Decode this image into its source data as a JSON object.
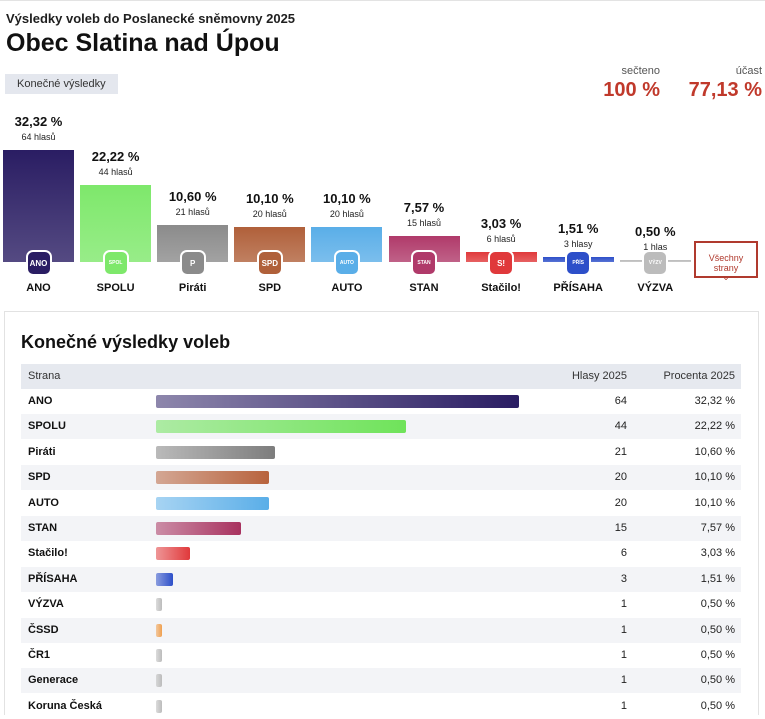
{
  "header": {
    "subtitle": "Výsledky voleb do Poslanecké sněmovny 2025",
    "title": "Obec Slatina nad Úpou",
    "badge": "Konečné výsledky"
  },
  "stats": {
    "counted_label": "sečteno",
    "counted_value": "100 %",
    "turnout_label": "účast",
    "turnout_value": "77,13 %"
  },
  "all_parties_button": {
    "label": "Všechny strany",
    "icon": "chevron-down-icon"
  },
  "chart_data": {
    "type": "bar",
    "title": "",
    "categories": [
      "ANO",
      "SPOLU",
      "Piráti",
      "SPD",
      "AUTO",
      "STAN",
      "Stačilo!",
      "PŘÍSAHA",
      "VÝZVA"
    ],
    "values": [
      32.32,
      22.22,
      10.6,
      10.1,
      10.1,
      7.57,
      3.03,
      1.51,
      0.5
    ],
    "value_labels": [
      "32,32 %",
      "22,22 %",
      "10,60 %",
      "10,10 %",
      "10,10 %",
      "7,57 %",
      "3,03 %",
      "1,51 %",
      "0,50 %"
    ],
    "vote_labels": [
      "64 hlasů",
      "44 hlasů",
      "21 hlasů",
      "20 hlasů",
      "20 hlasů",
      "15 hlasů",
      "6 hlasů",
      "3 hlasy",
      "1 hlas"
    ],
    "colors": [
      "#2a1d63",
      "#7ee86b",
      "#8b8b8b",
      "#b0603a",
      "#5aaee8",
      "#b03a6a",
      "#e0393b",
      "#2d4fc9",
      "#bcbcbc"
    ],
    "logo_texts": [
      "ANO",
      "SPOLU",
      "P",
      "SPD",
      "AUTO",
      "STAN",
      "S!",
      "PŘÍSAHA",
      "VÝZVA"
    ],
    "ylim": [
      0,
      32.32
    ]
  },
  "table": {
    "title": "Konečné výsledky voleb",
    "headers": {
      "party": "Strana",
      "votes": "Hlasy 2025",
      "percent": "Procenta 2025"
    },
    "max_votes": 64,
    "rows": [
      {
        "party": "ANO",
        "votes": "64",
        "percent": "32,32 %",
        "color": "#2a1d63"
      },
      {
        "party": "SPOLU",
        "votes": "44",
        "percent": "22,22 %",
        "color": "#6fe35a"
      },
      {
        "party": "Piráti",
        "votes": "21",
        "percent": "10,60 %",
        "color": "#7d7d7d"
      },
      {
        "party": "SPD",
        "votes": "20",
        "percent": "10,10 %",
        "color": "#b8633d"
      },
      {
        "party": "AUTO",
        "votes": "20",
        "percent": "10,10 %",
        "color": "#5aaee8"
      },
      {
        "party": "STAN",
        "votes": "15",
        "percent": "7,57 %",
        "color": "#a8325f"
      },
      {
        "party": "Stačilo!",
        "votes": "6",
        "percent": "3,03 %",
        "color": "#e0393b"
      },
      {
        "party": "PŘÍSAHA",
        "votes": "3",
        "percent": "1,51 %",
        "color": "#2d4fc9"
      },
      {
        "party": "VÝZVA",
        "votes": "1",
        "percent": "0,50 %",
        "color": "#bcbcbc"
      },
      {
        "party": "ČSSD",
        "votes": "1",
        "percent": "0,50 %",
        "color": "#f0a050"
      },
      {
        "party": "ČR1",
        "votes": "1",
        "percent": "0,50 %",
        "color": "#bcbcbc"
      },
      {
        "party": "Generace",
        "votes": "1",
        "percent": "0,50 %",
        "color": "#bcbcbc"
      },
      {
        "party": "Koruna Česká",
        "votes": "1",
        "percent": "0,50 %",
        "color": "#bcbcbc"
      }
    ]
  }
}
